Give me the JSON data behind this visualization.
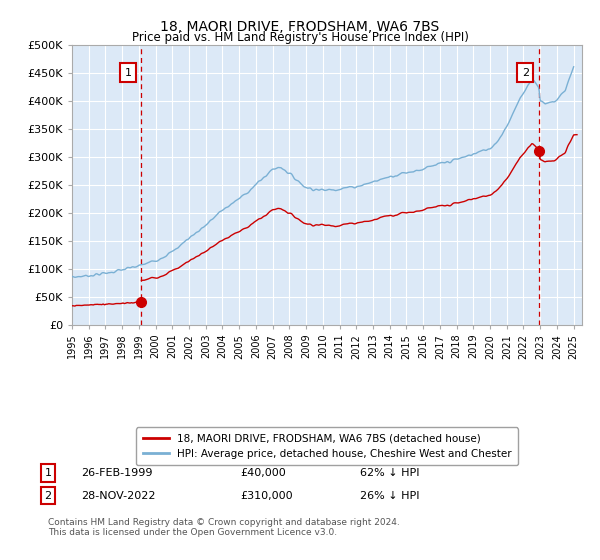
{
  "title": "18, MAORI DRIVE, FRODSHAM, WA6 7BS",
  "subtitle": "Price paid vs. HM Land Registry's House Price Index (HPI)",
  "ylim": [
    0,
    500000
  ],
  "yticks": [
    0,
    50000,
    100000,
    150000,
    200000,
    250000,
    300000,
    350000,
    400000,
    450000,
    500000
  ],
  "ytick_labels": [
    "£0",
    "£50K",
    "£100K",
    "£150K",
    "£200K",
    "£250K",
    "£300K",
    "£350K",
    "£400K",
    "£450K",
    "£500K"
  ],
  "xlim_start": 1995.0,
  "xlim_end": 2025.5,
  "background_color": "#dce9f7",
  "grid_color": "#ffffff",
  "sale1_year": 1999.15,
  "sale1_price": 40000,
  "sale1_label": "26-FEB-1999",
  "sale1_amount": "£40,000",
  "sale1_pct": "62% ↓ HPI",
  "sale2_year": 2022.92,
  "sale2_price": 310000,
  "sale2_label": "28-NOV-2022",
  "sale2_amount": "£310,000",
  "sale2_pct": "26% ↓ HPI",
  "hpi_color": "#7ab0d4",
  "price_color": "#cc0000",
  "legend_line1": "18, MAORI DRIVE, FRODSHAM, WA6 7BS (detached house)",
  "legend_line2": "HPI: Average price, detached house, Cheshire West and Chester",
  "footer": "Contains HM Land Registry data © Crown copyright and database right 2024.\nThis data is licensed under the Open Government Licence v3.0."
}
